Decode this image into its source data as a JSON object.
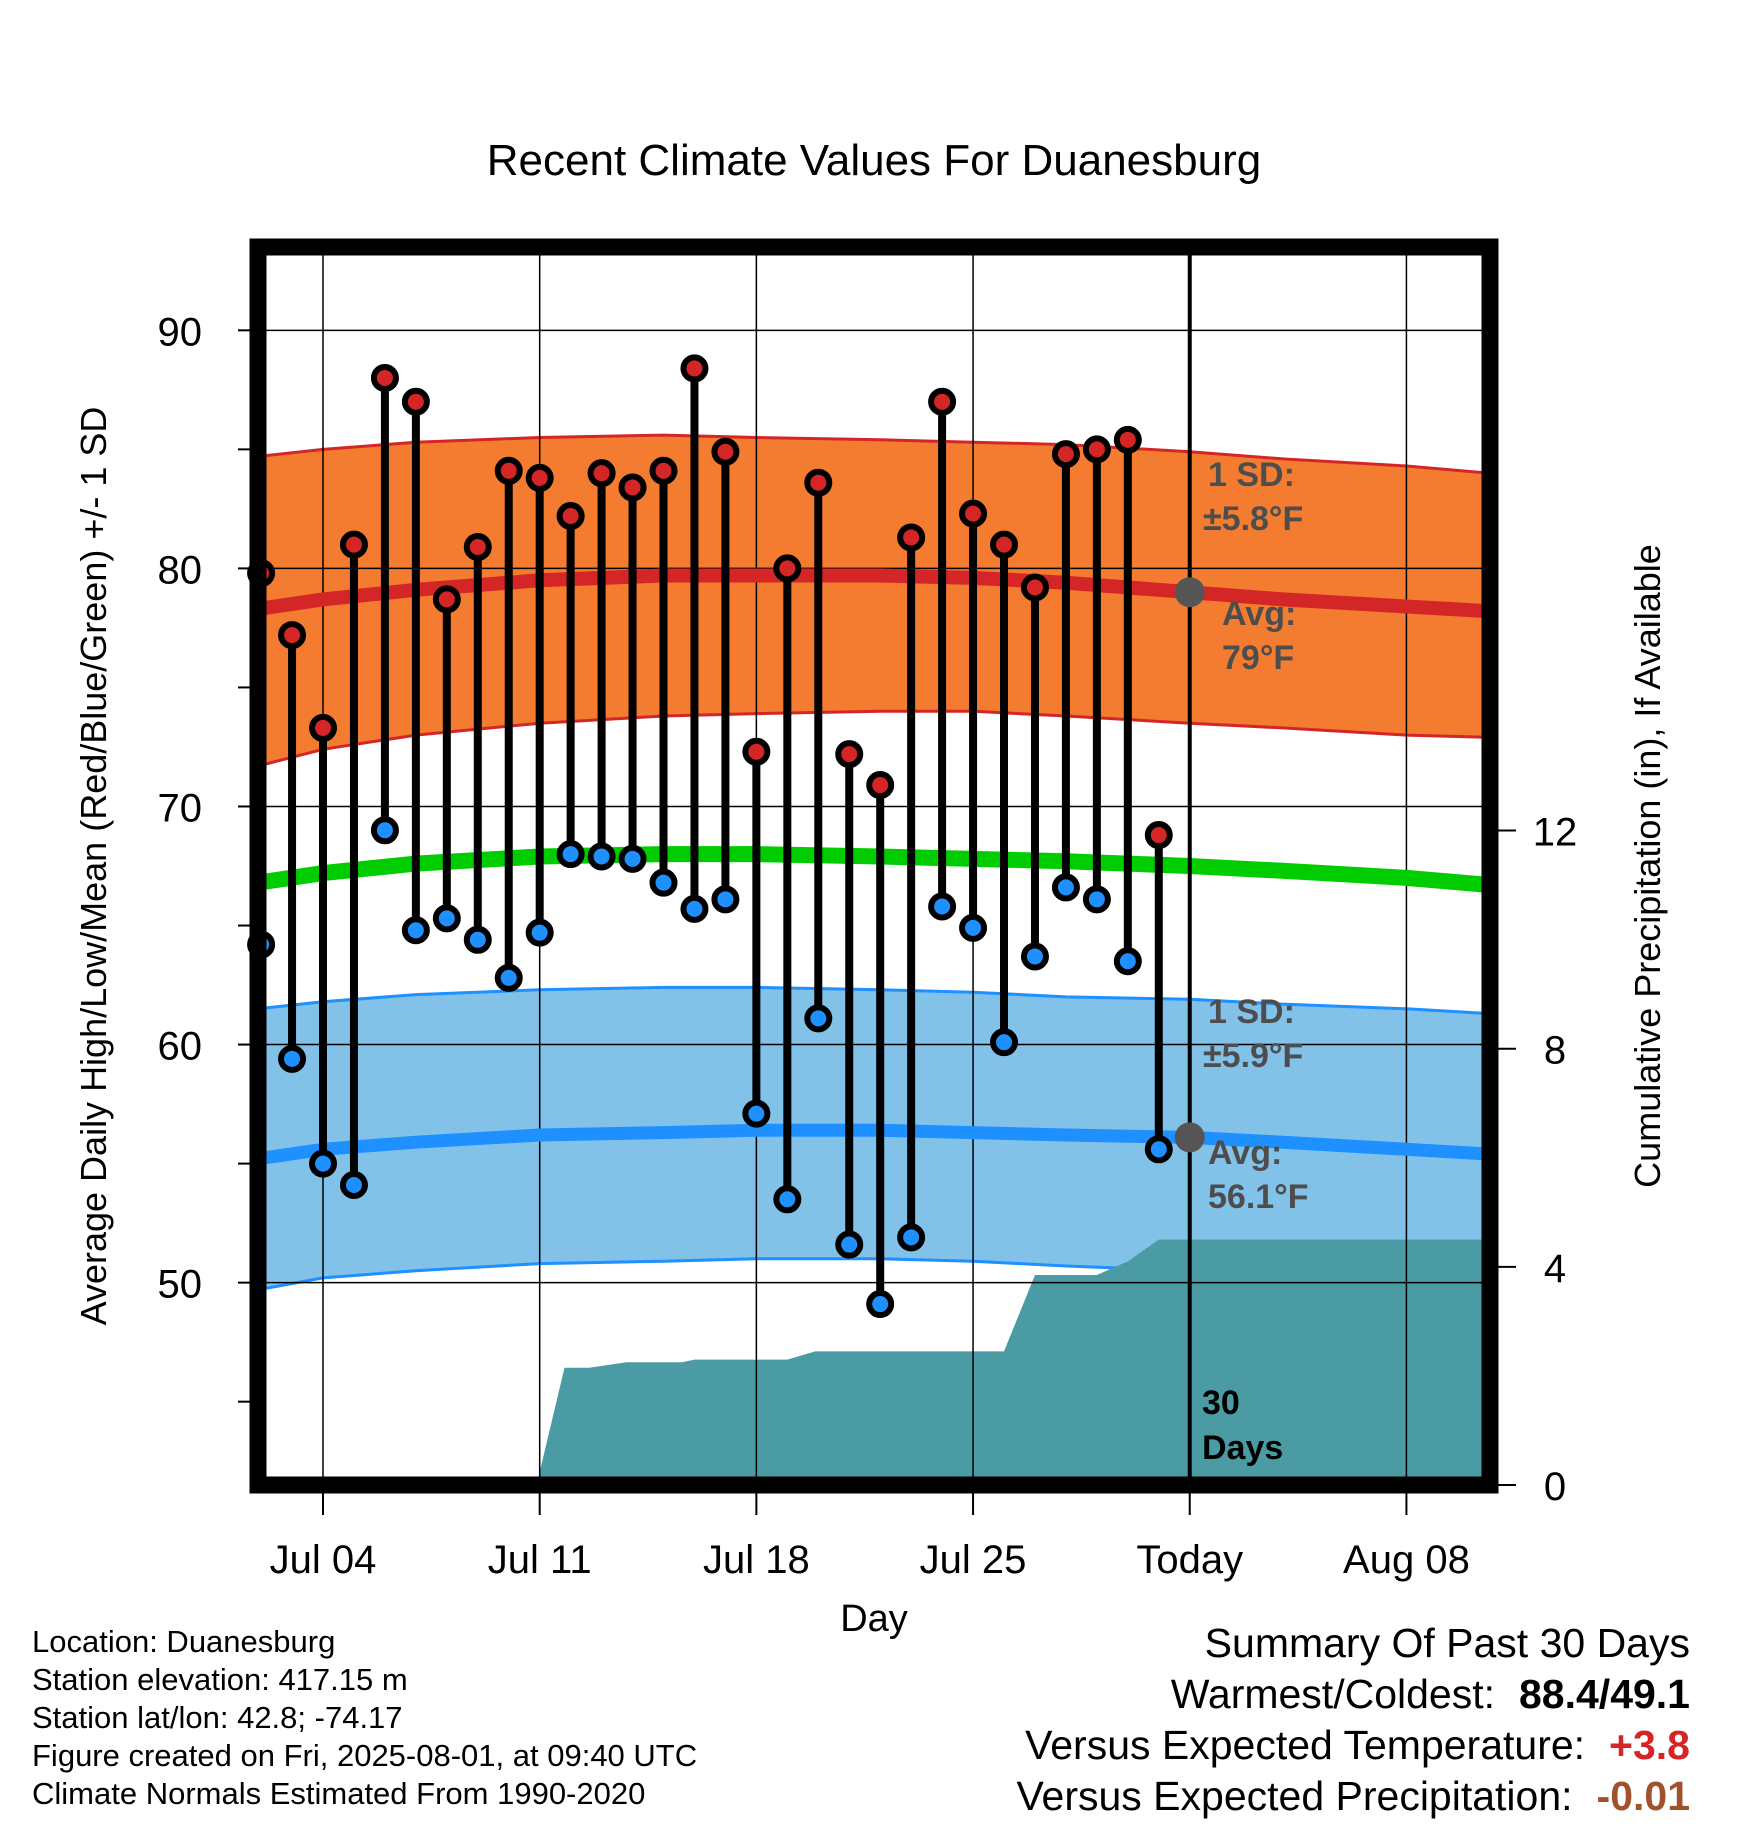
{
  "title": "Recent Climate Values For Duanesburg",
  "ylabel": "Average Daily High/Low/Mean (Red/Blue/Green) +/- 1 SD",
  "y2label": "Cumulative Precipitation (in), If Available",
  "xlabel": "Day",
  "colors": {
    "high_band": "#f47c30",
    "high_avg": "#d42626",
    "low_band": "#82c1e8",
    "low_avg": "#1e90ff",
    "mean_line": "#00cc00",
    "precip": "#4a9ba4",
    "high_dot": "#d42626",
    "low_dot": "#1e90ff",
    "annotation_text": "#4d4d4d",
    "positive_anomaly": "#d42626",
    "negative_anomaly": "#a0522d"
  },
  "annotations": {
    "high_sd": [
      "1 SD:",
      "±5.8°F"
    ],
    "high_avg": [
      "Avg:",
      "79°F"
    ],
    "low_sd": [
      "1 SD:",
      "±5.9°F"
    ],
    "low_avg": [
      "Avg:",
      "56.1°F"
    ],
    "window": [
      "30",
      "Days"
    ]
  },
  "footer": {
    "location": "Location: Duanesburg",
    "elevation": "Station elevation: 417.15 m",
    "latlon": "Station lat/lon: 42.8; -74.17",
    "created": "Figure created on Fri, 2025-08-01, at 09:40 UTC",
    "normals": "Climate Normals Estimated From 1990-2020"
  },
  "summary": {
    "title": "Summary Of Past 30 Days",
    "warmest_coldest_label": "Warmest/Coldest:",
    "warmest_coldest_value": "88.4/49.1",
    "temp_label": "Versus Expected Temperature:",
    "temp_value": "+3.8",
    "precip_label": "Versus Expected Precipitation:",
    "precip_value": "-0.01"
  },
  "chart_data": {
    "type": "line",
    "x_unit": "day offset",
    "xlim": [
      -30.1,
      9.7
    ],
    "ylim": [
      41.5,
      93.5
    ],
    "y2lim": [
      0,
      22.7
    ],
    "x_ticks": [
      {
        "x": -28,
        "label": "Jul 04"
      },
      {
        "x": -21,
        "label": "Jul 11"
      },
      {
        "x": -14,
        "label": "Jul 18"
      },
      {
        "x": -7,
        "label": "Jul 25"
      },
      {
        "x": 0,
        "label": "Today"
      },
      {
        "x": 7,
        "label": "Aug 08"
      }
    ],
    "y_ticks": [
      50,
      60,
      70,
      80,
      90
    ],
    "y_minor_ticks": [
      45,
      55,
      65,
      75,
      85
    ],
    "y2_ticks": [
      0,
      4,
      8,
      12
    ],
    "grid": true,
    "today_x": 0,
    "observed": {
      "x": [
        -30,
        -29,
        -28,
        -27,
        -26,
        -25,
        -24,
        -23,
        -22,
        -21,
        -20,
        -19,
        -18,
        -17,
        -16,
        -15,
        -14,
        -13,
        -12,
        -11,
        -10,
        -9,
        -8,
        -7,
        -6,
        -5,
        -4,
        -3,
        -2,
        -1
      ],
      "high": [
        79.8,
        77.2,
        73.3,
        81.0,
        88.0,
        87.0,
        78.7,
        80.9,
        84.1,
        83.8,
        82.2,
        84.0,
        83.4,
        84.1,
        88.4,
        84.9,
        72.3,
        80.0,
        83.6,
        72.2,
        70.9,
        81.3,
        87.0,
        82.3,
        81.0,
        79.2,
        84.8,
        85.0,
        85.4,
        68.8
      ],
      "low": [
        64.2,
        59.4,
        55.0,
        54.1,
        69.0,
        64.8,
        65.3,
        64.4,
        62.8,
        64.7,
        68.0,
        67.9,
        67.8,
        66.8,
        65.7,
        66.1,
        57.1,
        53.5,
        61.1,
        51.6,
        49.1,
        51.9,
        65.8,
        64.9,
        60.1,
        63.7,
        66.6,
        66.1,
        63.5,
        55.6
      ]
    },
    "normals": {
      "x": [
        -30.1,
        -28,
        -25,
        -21,
        -17,
        -14,
        -10,
        -7,
        -4,
        0,
        3,
        7,
        9.7
      ],
      "high_avg": [
        78.3,
        78.7,
        79.1,
        79.5,
        79.7,
        79.7,
        79.7,
        79.6,
        79.4,
        79.0,
        78.7,
        78.4,
        78.2
      ],
      "high_upper": [
        84.7,
        85.0,
        85.3,
        85.5,
        85.6,
        85.5,
        85.4,
        85.3,
        85.2,
        84.9,
        84.6,
        84.3,
        84.0
      ],
      "high_lower": [
        71.7,
        72.4,
        73.0,
        73.5,
        73.8,
        73.9,
        74.0,
        74.0,
        73.8,
        73.5,
        73.3,
        73.0,
        72.9
      ],
      "mean": [
        66.8,
        67.2,
        67.6,
        67.9,
        68.0,
        68.0,
        67.9,
        67.8,
        67.7,
        67.5,
        67.3,
        67.0,
        66.7
      ],
      "low_avg": [
        55.2,
        55.6,
        55.9,
        56.2,
        56.3,
        56.4,
        56.4,
        56.3,
        56.2,
        56.1,
        55.9,
        55.6,
        55.4
      ],
      "low_upper": [
        61.5,
        61.8,
        62.1,
        62.3,
        62.4,
        62.4,
        62.3,
        62.2,
        62.0,
        61.9,
        61.7,
        61.5,
        61.3
      ],
      "low_lower": [
        49.7,
        50.2,
        50.5,
        50.8,
        50.9,
        51.0,
        51.0,
        50.9,
        50.7,
        50.5,
        50.3,
        50.1,
        50.0
      ]
    },
    "precip_cumulative": {
      "x": [
        -21.1,
        -20.2,
        -19.4,
        -18.2,
        -16.4,
        -16.0,
        -15.0,
        -13.0,
        -12.1,
        -6.0,
        -5.0,
        -3.0,
        -2.0,
        -1.0,
        9.7
      ],
      "y": [
        0,
        2.15,
        2.15,
        2.25,
        2.25,
        2.3,
        2.3,
        2.3,
        2.45,
        2.45,
        3.85,
        3.85,
        4.1,
        4.5,
        4.5
      ]
    }
  }
}
